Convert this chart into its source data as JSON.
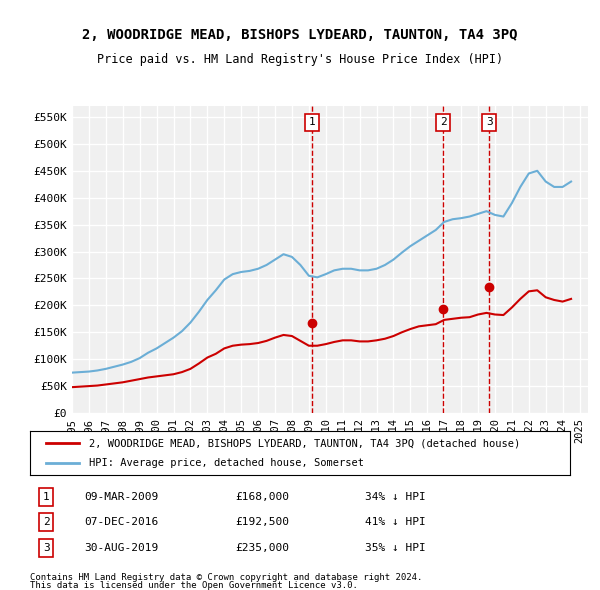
{
  "title": "2, WOODRIDGE MEAD, BISHOPS LYDEARD, TAUNTON, TA4 3PQ",
  "subtitle": "Price paid vs. HM Land Registry's House Price Index (HPI)",
  "legend_line1": "2, WOODRIDGE MEAD, BISHOPS LYDEARD, TAUNTON, TA4 3PQ (detached house)",
  "legend_line2": "HPI: Average price, detached house, Somerset",
  "footnote1": "Contains HM Land Registry data © Crown copyright and database right 2024.",
  "footnote2": "This data is licensed under the Open Government Licence v3.0.",
  "ylabel": "",
  "ylim": [
    0,
    570000
  ],
  "yticks": [
    0,
    50000,
    100000,
    150000,
    200000,
    250000,
    300000,
    350000,
    400000,
    450000,
    500000,
    550000
  ],
  "ytick_labels": [
    "£0",
    "£50K",
    "£100K",
    "£150K",
    "£200K",
    "£250K",
    "£300K",
    "£350K",
    "£400K",
    "£450K",
    "£500K",
    "£550K"
  ],
  "background_color": "#ffffff",
  "plot_background": "#f0f0f0",
  "grid_color": "#ffffff",
  "hpi_color": "#6baed6",
  "price_color": "#cc0000",
  "vline_color": "#cc0000",
  "transactions": [
    {
      "date": 2009.19,
      "price": 168000,
      "label": "1",
      "date_str": "09-MAR-2009",
      "pct": "34%"
    },
    {
      "date": 2016.93,
      "price": 192500,
      "label": "2",
      "date_str": "07-DEC-2016",
      "pct": "41%"
    },
    {
      "date": 2019.66,
      "price": 235000,
      "label": "3",
      "date_str": "30-AUG-2019",
      "pct": "35%"
    }
  ],
  "hpi_data": {
    "x": [
      1995,
      1995.5,
      1996,
      1996.5,
      1997,
      1997.5,
      1998,
      1998.5,
      1999,
      1999.5,
      2000,
      2000.5,
      2001,
      2001.5,
      2002,
      2002.5,
      2003,
      2003.5,
      2004,
      2004.5,
      2005,
      2005.5,
      2006,
      2006.5,
      2007,
      2007.5,
      2008,
      2008.5,
      2009,
      2009.5,
      2010,
      2010.5,
      2011,
      2011.5,
      2012,
      2012.5,
      2013,
      2013.5,
      2014,
      2014.5,
      2015,
      2015.5,
      2016,
      2016.5,
      2017,
      2017.5,
      2018,
      2018.5,
      2019,
      2019.5,
      2020,
      2020.5,
      2021,
      2021.5,
      2022,
      2022.5,
      2023,
      2023.5,
      2024,
      2024.5
    ],
    "y": [
      75000,
      76000,
      77000,
      79000,
      82000,
      86000,
      90000,
      95000,
      102000,
      112000,
      120000,
      130000,
      140000,
      152000,
      168000,
      188000,
      210000,
      228000,
      248000,
      258000,
      262000,
      264000,
      268000,
      275000,
      285000,
      295000,
      290000,
      275000,
      255000,
      252000,
      258000,
      265000,
      268000,
      268000,
      265000,
      265000,
      268000,
      275000,
      285000,
      298000,
      310000,
      320000,
      330000,
      340000,
      355000,
      360000,
      362000,
      365000,
      370000,
      375000,
      368000,
      365000,
      390000,
      420000,
      445000,
      450000,
      430000,
      420000,
      420000,
      430000
    ]
  },
  "price_data": {
    "x": [
      1995,
      1995.5,
      1996,
      1996.5,
      1997,
      1997.5,
      1998,
      1998.5,
      1999,
      1999.5,
      2000,
      2000.5,
      2001,
      2001.5,
      2002,
      2002.5,
      2003,
      2003.5,
      2004,
      2004.5,
      2005,
      2005.5,
      2006,
      2006.5,
      2007,
      2007.5,
      2008,
      2008.5,
      2009,
      2009.5,
      2010,
      2010.5,
      2011,
      2011.5,
      2012,
      2012.5,
      2013,
      2013.5,
      2014,
      2014.5,
      2015,
      2015.5,
      2016,
      2016.5,
      2017,
      2017.5,
      2018,
      2018.5,
      2019,
      2019.5,
      2020,
      2020.5,
      2021,
      2021.5,
      2022,
      2022.5,
      2023,
      2023.5,
      2024,
      2024.5
    ],
    "y": [
      48000,
      49000,
      50000,
      51000,
      53000,
      55000,
      57000,
      60000,
      63000,
      66000,
      68000,
      70000,
      72000,
      76000,
      82000,
      92000,
      103000,
      110000,
      120000,
      125000,
      127000,
      128000,
      130000,
      134000,
      140000,
      145000,
      143000,
      134000,
      125000,
      125000,
      128000,
      132000,
      135000,
      135000,
      133000,
      133000,
      135000,
      138000,
      143000,
      150000,
      156000,
      161000,
      163000,
      165000,
      173000,
      175000,
      177000,
      178000,
      183000,
      186000,
      183000,
      182000,
      196000,
      212000,
      226000,
      228000,
      215000,
      210000,
      207000,
      212000
    ]
  },
  "x_tick_years": [
    1995,
    1996,
    1997,
    1998,
    1999,
    2000,
    2001,
    2002,
    2003,
    2004,
    2005,
    2006,
    2007,
    2008,
    2009,
    2010,
    2011,
    2012,
    2013,
    2014,
    2015,
    2016,
    2017,
    2018,
    2019,
    2020,
    2021,
    2022,
    2023,
    2024,
    2025
  ]
}
